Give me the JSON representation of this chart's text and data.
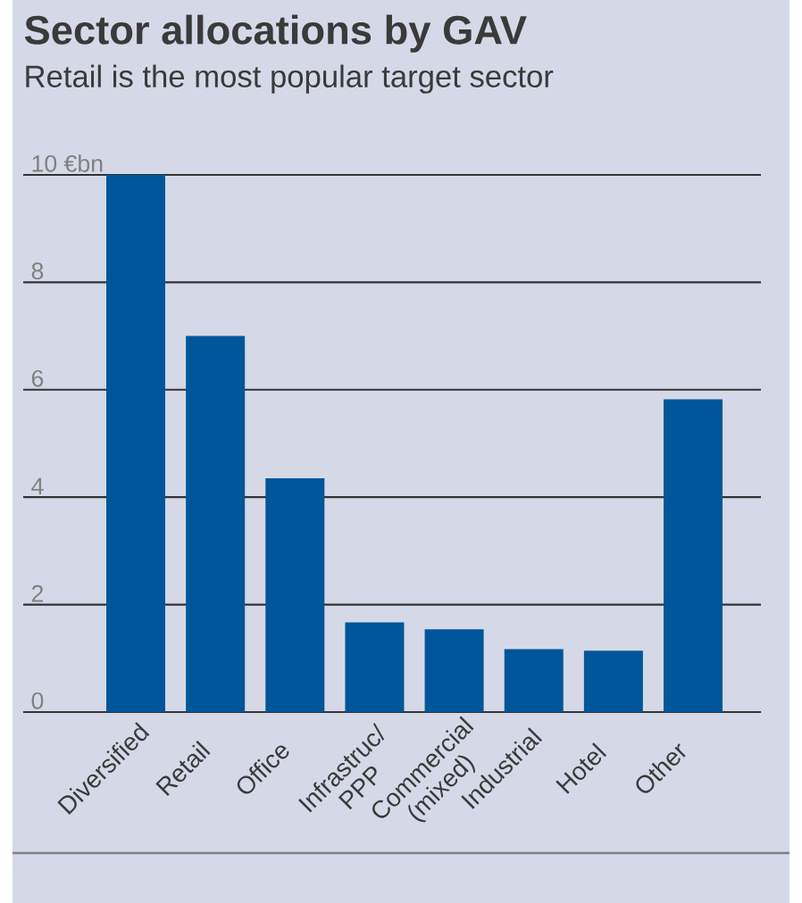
{
  "chart_data": {
    "type": "bar",
    "title": "Sector allocations by GAV",
    "subtitle": "Retail is the most popular target sector",
    "categories": [
      "Diversified",
      "Retail",
      "Office",
      "Infrastruc/ PPP",
      "Commercial (mixed)",
      "Industrial",
      "Hotel",
      "Other"
    ],
    "values": [
      10.0,
      7.0,
      4.35,
      1.67,
      1.54,
      1.17,
      1.14,
      5.82
    ],
    "color": "#00569a",
    "ylim": [
      0,
      10
    ],
    "yticks": [
      0,
      2,
      4,
      6,
      8,
      {
        "value": 10,
        "label": "10 €bn"
      }
    ],
    "grid": "y"
  }
}
